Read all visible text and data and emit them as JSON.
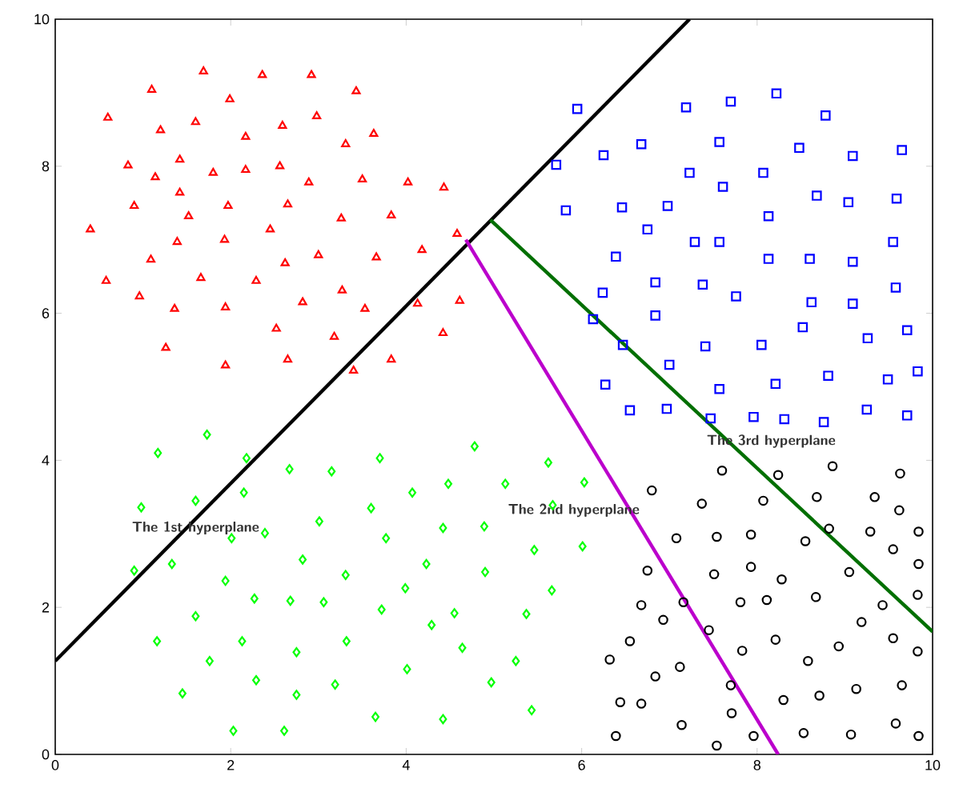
{
  "chart_data": {
    "type": "scatter",
    "xlim": [
      0,
      10
    ],
    "ylim": [
      0,
      10
    ],
    "xticks": [
      0,
      2,
      4,
      6,
      8,
      10
    ],
    "yticks": [
      0,
      2,
      4,
      6,
      8,
      10
    ],
    "series": [
      {
        "color": "#ff0000",
        "marker": "triangle",
        "x": [
          1.69,
          2.36,
          2.92,
          1.1,
          1.99,
          3.43,
          0.6,
          1.2,
          1.6,
          2.17,
          2.59,
          2.98,
          3.31,
          3.63,
          0.83,
          1.14,
          1.42,
          1.8,
          2.17,
          2.56,
          2.89,
          3.5,
          4.02,
          4.43,
          0.9,
          1.42,
          1.97,
          2.65,
          1.52,
          0.4,
          1.39,
          1.93,
          2.45,
          3.26,
          3.83,
          4.58,
          1.09,
          2.62,
          3.0,
          3.66,
          4.18,
          0.58,
          0.96,
          1.66,
          2.29,
          3.27,
          1.36,
          1.94,
          2.82,
          3.53,
          4.13,
          4.61,
          2.52,
          3.18,
          4.42,
          1.26,
          1.94,
          2.65,
          3.4,
          3.83
        ],
        "values": [
          9.29,
          9.24,
          9.24,
          9.04,
          8.91,
          9.02,
          8.66,
          8.49,
          8.6,
          8.4,
          8.55,
          8.68,
          8.3,
          8.44,
          8.01,
          7.85,
          8.09,
          7.91,
          7.95,
          8.0,
          7.78,
          7.82,
          7.78,
          7.71,
          7.46,
          7.64,
          7.46,
          7.48,
          7.32,
          7.14,
          6.97,
          7.0,
          7.14,
          7.29,
          7.33,
          7.08,
          6.73,
          6.68,
          6.79,
          6.76,
          6.86,
          6.44,
          6.23,
          6.48,
          6.44,
          6.31,
          6.06,
          6.08,
          6.15,
          6.06,
          6.13,
          6.17,
          5.79,
          5.68,
          5.73,
          5.53,
          5.29,
          5.37,
          5.22,
          5.37
        ]
      },
      {
        "color": "#0000ff",
        "marker": "square",
        "x": [
          5.95,
          7.19,
          7.7,
          8.22,
          8.78,
          5.71,
          6.25,
          6.68,
          7.57,
          8.48,
          9.09,
          9.65,
          7.23,
          7.61,
          8.07,
          5.82,
          6.46,
          6.98,
          8.13,
          8.68,
          9.04,
          9.59,
          6.75,
          7.29,
          7.57,
          6.39,
          8.13,
          8.6,
          9.09,
          9.55,
          6.24,
          6.84,
          7.38,
          7.76,
          8.62,
          9.09,
          9.58,
          6.13,
          6.84,
          8.52,
          6.47,
          7.41,
          8.05,
          9.26,
          9.71,
          7.0,
          6.27,
          7.57,
          8.21,
          8.81,
          9.49,
          9.83,
          6.55,
          6.97,
          7.47,
          7.96,
          8.31,
          8.76,
          9.25,
          9.71
        ],
        "values": [
          8.78,
          8.8,
          8.88,
          8.99,
          8.69,
          8.02,
          8.15,
          8.3,
          8.33,
          8.25,
          8.14,
          8.22,
          7.91,
          7.72,
          7.91,
          7.4,
          7.44,
          7.46,
          7.32,
          7.6,
          7.51,
          7.56,
          7.14,
          6.97,
          6.97,
          6.77,
          6.74,
          6.74,
          6.7,
          6.97,
          6.28,
          6.42,
          6.39,
          6.23,
          6.15,
          6.13,
          6.35,
          5.92,
          5.97,
          5.81,
          5.57,
          5.55,
          5.57,
          5.66,
          5.77,
          5.3,
          5.03,
          4.97,
          5.04,
          5.15,
          5.1,
          5.21,
          4.68,
          4.7,
          4.57,
          4.59,
          4.56,
          4.52,
          4.69,
          4.61
        ]
      },
      {
        "color": "#00ff00",
        "marker": "diamond",
        "x": [
          1.73,
          1.17,
          2.18,
          2.67,
          3.15,
          3.7,
          4.78,
          0.98,
          1.6,
          2.15,
          4.07,
          4.48,
          5.13,
          3.6,
          3.01,
          2.01,
          2.39,
          3.77,
          4.42,
          4.89,
          0.9,
          1.33,
          2.82,
          3.31,
          4.23,
          4.9,
          1.94,
          2.27,
          2.68,
          3.06,
          3.99,
          1.6,
          3.72,
          4.55,
          4.29,
          1.16,
          2.13,
          2.75,
          3.32,
          4.64,
          1.76,
          5.25,
          2.29,
          3.19,
          4.01,
          4.97,
          1.45,
          2.75,
          3.65,
          4.42,
          2.03,
          2.61,
          5.62,
          6.03,
          5.67,
          5.46,
          6.01,
          5.66,
          5.37,
          5.43
        ],
        "values": [
          4.35,
          4.1,
          4.03,
          3.88,
          3.85,
          4.03,
          4.19,
          3.36,
          3.45,
          3.56,
          3.56,
          3.68,
          3.68,
          3.35,
          3.17,
          2.94,
          3.01,
          2.94,
          3.08,
          3.1,
          2.5,
          2.59,
          2.65,
          2.44,
          2.59,
          2.48,
          2.36,
          2.12,
          2.09,
          2.07,
          2.26,
          1.88,
          1.97,
          1.92,
          1.76,
          1.54,
          1.54,
          1.39,
          1.54,
          1.45,
          1.27,
          1.27,
          1.01,
          0.95,
          1.16,
          0.98,
          0.83,
          0.81,
          0.51,
          0.48,
          0.32,
          0.32,
          3.97,
          3.7,
          3.39,
          2.78,
          2.83,
          2.23,
          1.91,
          0.6
        ]
      },
      {
        "color": "#000000",
        "marker": "circle",
        "x": [
          7.6,
          8.24,
          8.86,
          9.63,
          6.8,
          7.37,
          8.07,
          8.68,
          9.34,
          9.62,
          7.08,
          7.54,
          7.93,
          8.55,
          8.82,
          9.29,
          9.84,
          9.55,
          9.84,
          6.75,
          7.51,
          7.93,
          8.28,
          9.05,
          6.68,
          7.16,
          7.81,
          8.11,
          8.67,
          9.43,
          9.83,
          6.93,
          7.45,
          9.19,
          6.55,
          6.32,
          7.12,
          6.84,
          7.83,
          8.21,
          8.58,
          8.93,
          9.55,
          9.83,
          7.7,
          6.44,
          6.68,
          8.3,
          8.71,
          9.13,
          9.65,
          7.71,
          7.14,
          6.39,
          7.54,
          7.96,
          8.53,
          9.07,
          9.58,
          9.84
        ],
        "values": [
          3.86,
          3.8,
          3.92,
          3.82,
          3.59,
          3.41,
          3.45,
          3.5,
          3.5,
          3.32,
          2.94,
          2.96,
          2.99,
          2.9,
          3.07,
          3.03,
          3.03,
          2.79,
          2.59,
          2.5,
          2.45,
          2.55,
          2.38,
          2.48,
          2.03,
          2.07,
          2.07,
          2.1,
          2.14,
          2.03,
          2.17,
          1.83,
          1.69,
          1.8,
          1.54,
          1.29,
          1.19,
          1.06,
          1.41,
          1.56,
          1.27,
          1.47,
          1.58,
          1.4,
          0.94,
          0.71,
          0.69,
          0.74,
          0.8,
          0.89,
          0.94,
          0.56,
          0.4,
          0.25,
          0.12,
          0.25,
          0.29,
          0.27,
          0.42,
          0.25
        ]
      },
      {
        "type": "line",
        "color": "#000000",
        "x": [
          0,
          7.23
        ],
        "values": [
          1.27,
          10
        ]
      },
      {
        "type": "line",
        "color": "#bb00cc",
        "x": [
          4.68,
          8.24
        ],
        "values": [
          7.0,
          0
        ]
      },
      {
        "type": "line",
        "color": "#006f00",
        "x": [
          4.96,
          10
        ],
        "values": [
          7.27,
          1.67
        ]
      }
    ],
    "annotations": [
      "The 1st hyperplane",
      "The 2nd hyperplane",
      "The 3rd hyperplane"
    ]
  }
}
